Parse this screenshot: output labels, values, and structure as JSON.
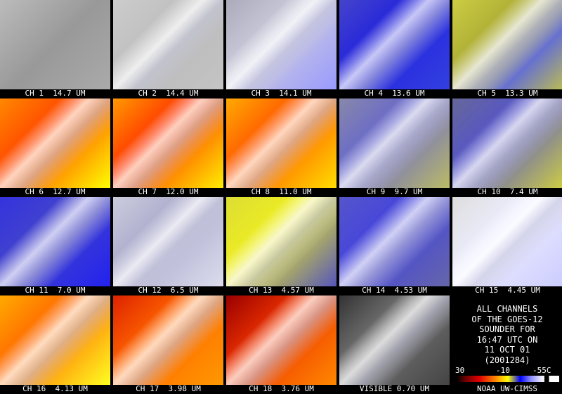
{
  "panels": [
    {
      "label": "CH 1  14.7 UM"
    },
    {
      "label": "CH 2  14.4 UM"
    },
    {
      "label": "CH 3  14.1 UM"
    },
    {
      "label": "CH 4  13.6 UM"
    },
    {
      "label": "CH 5  13.3 UM"
    },
    {
      "label": "CH 6  12.7 UM"
    },
    {
      "label": "CH 7  12.0 UM"
    },
    {
      "label": "CH 8  11.0 UM"
    },
    {
      "label": "CH 9  9.7 UM"
    },
    {
      "label": "CH 10  7.4 UM"
    },
    {
      "label": "CH 11  7.0 UM"
    },
    {
      "label": "CH 12  6.5 UM"
    },
    {
      "label": "CH 13  4.57 UM"
    },
    {
      "label": "CH 14  4.53 UM"
    },
    {
      "label": "CH 15  4.45 UM"
    },
    {
      "label": "CH 16  4.13 UM"
    },
    {
      "label": "CH 17  3.98 UM"
    },
    {
      "label": "CH 18  3.76 UM"
    },
    {
      "label": "VISIBLE 0.70 UM"
    }
  ],
  "info": {
    "lines": [
      "ALL CHANNELS",
      "OF THE GOES-12",
      "SOUNDER FOR",
      "16:47 UTC ON",
      "11 OCT 01",
      "(2001284)"
    ],
    "colorbar_labels": [
      "30",
      "-10",
      "-55C"
    ],
    "credit": "NOAA UW-CIMSS"
  }
}
